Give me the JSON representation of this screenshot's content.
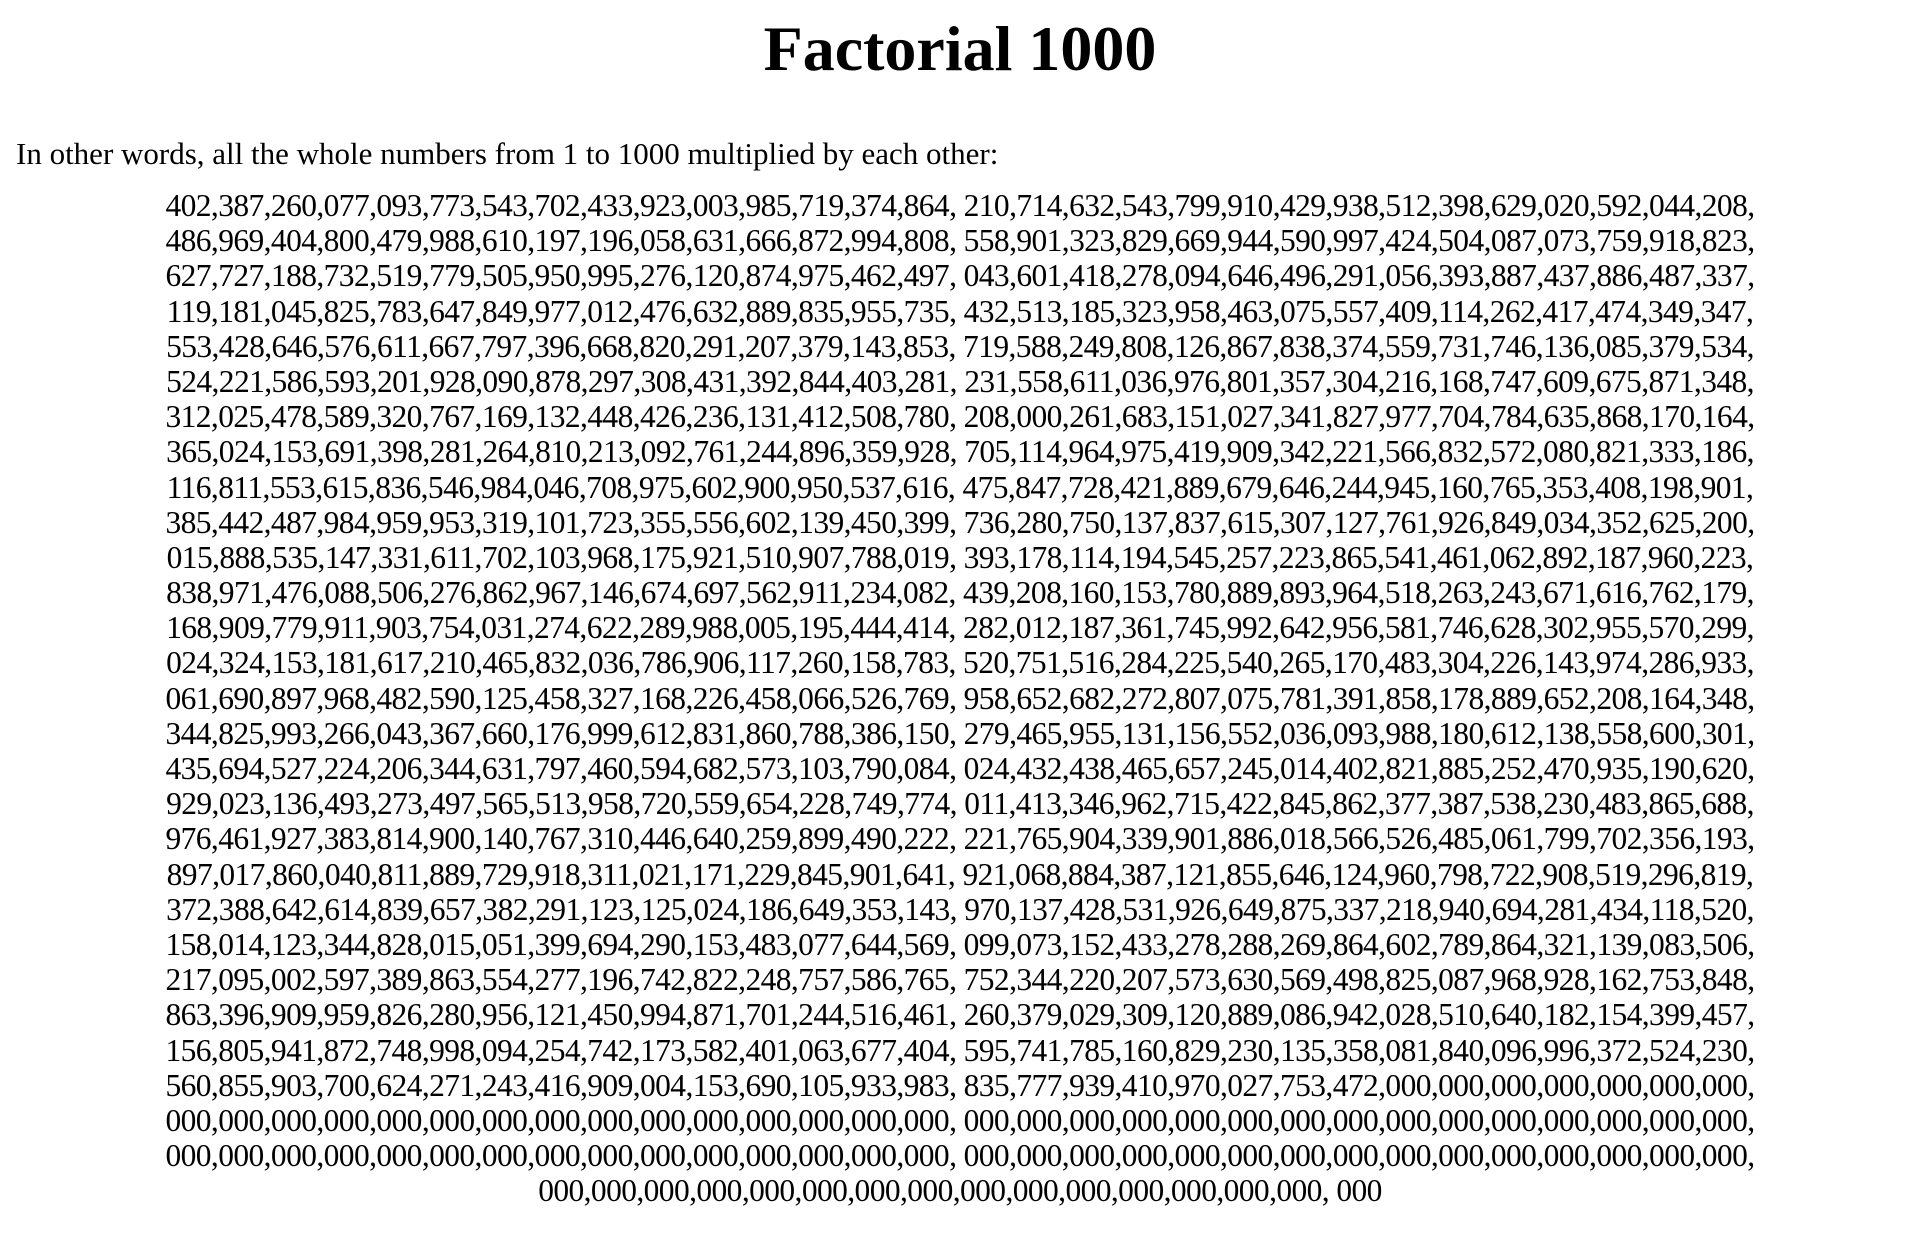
{
  "title": "Factorial 1000",
  "intro": "In other words, all the whole numbers from 1 to 1000 multiplied by each other:",
  "lines": [
    "402,387,260,077,093,773,543,702,433,923,003,985,719,374,864, 210,714,632,543,799,910,429,938,512,398,629,020,592,044,208,",
    "486,969,404,800,479,988,610,197,196,058,631,666,872,994,808, 558,901,323,829,669,944,590,997,424,504,087,073,759,918,823,",
    "627,727,188,732,519,779,505,950,995,276,120,874,975,462,497, 043,601,418,278,094,646,496,291,056,393,887,437,886,487,337,",
    "119,181,045,825,783,647,849,977,012,476,632,889,835,955,735, 432,513,185,323,958,463,075,557,409,114,262,417,474,349,347,",
    "553,428,646,576,611,667,797,396,668,820,291,207,379,143,853, 719,588,249,808,126,867,838,374,559,731,746,136,085,379,534,",
    "524,221,586,593,201,928,090,878,297,308,431,392,844,403,281, 231,558,611,036,976,801,357,304,216,168,747,609,675,871,348,",
    "312,025,478,589,320,767,169,132,448,426,236,131,412,508,780, 208,000,261,683,151,027,341,827,977,704,784,635,868,170,164,",
    "365,024,153,691,398,281,264,810,213,092,761,244,896,359,928, 705,114,964,975,419,909,342,221,566,832,572,080,821,333,186,",
    "116,811,553,615,836,546,984,046,708,975,602,900,950,537,616, 475,847,728,421,889,679,646,244,945,160,765,353,408,198,901,",
    "385,442,487,984,959,953,319,101,723,355,556,602,139,450,399, 736,280,750,137,837,615,307,127,761,926,849,034,352,625,200,",
    "015,888,535,147,331,611,702,103,968,175,921,510,907,788,019, 393,178,114,194,545,257,223,865,541,461,062,892,187,960,223,",
    "838,971,476,088,506,276,862,967,146,674,697,562,911,234,082, 439,208,160,153,780,889,893,964,518,263,243,671,616,762,179,",
    "168,909,779,911,903,754,031,274,622,289,988,005,195,444,414, 282,012,187,361,745,992,642,956,581,746,628,302,955,570,299,",
    "024,324,153,181,617,210,465,832,036,786,906,117,260,158,783, 520,751,516,284,225,540,265,170,483,304,226,143,974,286,933,",
    "061,690,897,968,482,590,125,458,327,168,226,458,066,526,769, 958,652,682,272,807,075,781,391,858,178,889,652,208,164,348,",
    "344,825,993,266,043,367,660,176,999,612,831,860,788,386,150, 279,465,955,131,156,552,036,093,988,180,612,138,558,600,301,",
    "435,694,527,224,206,344,631,797,460,594,682,573,103,790,084, 024,432,438,465,657,245,014,402,821,885,252,470,935,190,620,",
    "929,023,136,493,273,497,565,513,958,720,559,654,228,749,774, 011,413,346,962,715,422,845,862,377,387,538,230,483,865,688,",
    "976,461,927,383,814,900,140,767,310,446,640,259,899,490,222, 221,765,904,339,901,886,018,566,526,485,061,799,702,356,193,",
    "897,017,860,040,811,889,729,918,311,021,171,229,845,901,641, 921,068,884,387,121,855,646,124,960,798,722,908,519,296,819,",
    "372,388,642,614,839,657,382,291,123,125,024,186,649,353,143, 970,137,428,531,926,649,875,337,218,940,694,281,434,118,520,",
    "158,014,123,344,828,015,051,399,694,290,153,483,077,644,569, 099,073,152,433,278,288,269,864,602,789,864,321,139,083,506,",
    "217,095,002,597,389,863,554,277,196,742,822,248,757,586,765, 752,344,220,207,573,630,569,498,825,087,968,928,162,753,848,",
    "863,396,909,959,826,280,956,121,450,994,871,701,244,516,461, 260,379,029,309,120,889,086,942,028,510,640,182,154,399,457,",
    "156,805,941,872,748,998,094,254,742,173,582,401,063,677,404, 595,741,785,160,829,230,135,358,081,840,096,996,372,524,230,",
    "560,855,903,700,624,271,243,416,909,004,153,690,105,933,983, 835,777,939,410,970,027,753,472,000,000,000,000,000,000,000,",
    "000,000,000,000,000,000,000,000,000,000,000,000,000,000,000, 000,000,000,000,000,000,000,000,000,000,000,000,000,000,000,",
    "000,000,000,000,000,000,000,000,000,000,000,000,000,000,000, 000,000,000,000,000,000,000,000,000,000,000,000,000,000,000,",
    "000,000,000,000,000,000,000,000,000,000,000,000,000,000,000, 000"
  ]
}
